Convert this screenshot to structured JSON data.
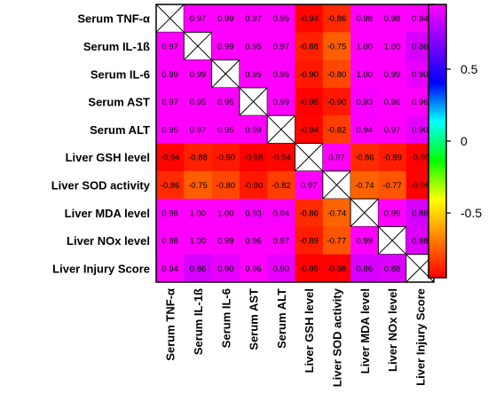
{
  "chart_data": {
    "type": "heatmap",
    "title": "",
    "xlabel": "",
    "ylabel": "",
    "rows": [
      "Serum TNF-α",
      "Serum IL-1ß",
      "Serum IL-6",
      "Serum AST",
      "Serum ALT",
      "Liver GSH level",
      "Liver SOD activity",
      "Liver MDA level",
      "Liver NOx level",
      "Liver Injury Score"
    ],
    "columns": [
      "Serum TNF-α",
      "Serum IL-1ß",
      "Serum IL-6",
      "Serum AST",
      "Serum ALT",
      "Liver GSH level",
      "Liver SOD activity",
      "Liver MDA level",
      "Liver NOx level",
      "Liver Injury Score"
    ],
    "values": [
      [
        null,
        0.97,
        0.99,
        0.97,
        0.95,
        -0.94,
        -0.86,
        0.98,
        0.98,
        0.94
      ],
      [
        0.97,
        null,
        0.99,
        0.95,
        0.97,
        -0.88,
        -0.75,
        1.0,
        1.0,
        0.86
      ],
      [
        0.99,
        0.99,
        null,
        0.95,
        0.95,
        -0.9,
        -0.8,
        1.0,
        0.99,
        0.9
      ],
      [
        0.97,
        0.95,
        0.95,
        null,
        0.99,
        -0.98,
        -0.9,
        0.93,
        0.96,
        0.96
      ],
      [
        0.95,
        0.97,
        0.95,
        0.99,
        null,
        -0.94,
        -0.82,
        0.94,
        0.97,
        0.9
      ],
      [
        -0.94,
        -0.88,
        -0.9,
        -0.98,
        -0.94,
        null,
        0.97,
        -0.86,
        -0.89,
        -0.99
      ],
      [
        -0.86,
        -0.75,
        -0.8,
        -0.9,
        -0.82,
        0.97,
        null,
        -0.74,
        -0.77,
        -0.98
      ],
      [
        0.98,
        1.0,
        1.0,
        0.93,
        0.94,
        -0.86,
        -0.74,
        null,
        0.99,
        0.86
      ],
      [
        0.98,
        1.0,
        0.99,
        0.96,
        0.97,
        -0.89,
        -0.77,
        0.99,
        null,
        0.88
      ],
      [
        0.94,
        0.86,
        0.9,
        0.96,
        0.9,
        -0.99,
        -0.98,
        0.86,
        0.88,
        null
      ]
    ],
    "value_labels": [
      [
        "",
        "0.97",
        "0.99",
        "0.97",
        "0.95",
        "-0.94",
        "-0.86",
        "0.98",
        "0.98",
        "0.94"
      ],
      [
        "0.97",
        "",
        "0.99",
        "0.95",
        "0.97",
        "-0.88",
        "-0.75",
        "1.00",
        "1.00",
        "0.86"
      ],
      [
        "0.99",
        "0.99",
        "",
        "0.95",
        "0.95",
        "-0.90",
        "-0.80",
        "1.00",
        "0.99",
        "0.90"
      ],
      [
        "0.97",
        "0.95",
        "0.95",
        "",
        "0.99",
        "-0.98",
        "-0.90",
        "0.93",
        "0.96",
        "0.96"
      ],
      [
        "0.95",
        "0.97",
        "0.95",
        "0.99",
        "",
        "-0.94",
        "-0.82",
        "0.94",
        "0.97",
        "0.90"
      ],
      [
        "-0.94",
        "-0.88",
        "-0.90",
        "-0.98",
        "-0.94",
        "",
        "0.97",
        "-0.86",
        "-0.89",
        "-0.99"
      ],
      [
        "-0.86",
        "-0.75",
        "-0.80",
        "-0.90",
        "-0.82",
        "0.97",
        "",
        "-0.74",
        "-0.77",
        "-0.98"
      ],
      [
        "0.98",
        "1.00",
        "1.00",
        "0.93",
        "0.94",
        "-0.86",
        "-0.74",
        "",
        "0.99",
        "0.86"
      ],
      [
        "0.98",
        "1.00",
        "0.99",
        "0.96",
        "0.97",
        "-0.89",
        "-0.77",
        "0.99",
        "",
        "0.88"
      ],
      [
        "0.94",
        "0.86",
        "0.90",
        "0.96",
        "0.90",
        "-0.99",
        "-0.98",
        "0.86",
        "0.88",
        ""
      ]
    ],
    "diagonal": "crossed-out",
    "colorbar": {
      "range": [
        -0.95,
        0.95
      ],
      "ticks": [
        0.5,
        0,
        -0.5
      ],
      "tick_labels": [
        "0.5",
        "0",
        "-0.5"
      ],
      "colors": [
        "#ff0000",
        "#ff8000",
        "#ffff00",
        "#00ff00",
        "#00ffff",
        "#0000ff",
        "#8000ff",
        "#ff00ff"
      ]
    }
  }
}
